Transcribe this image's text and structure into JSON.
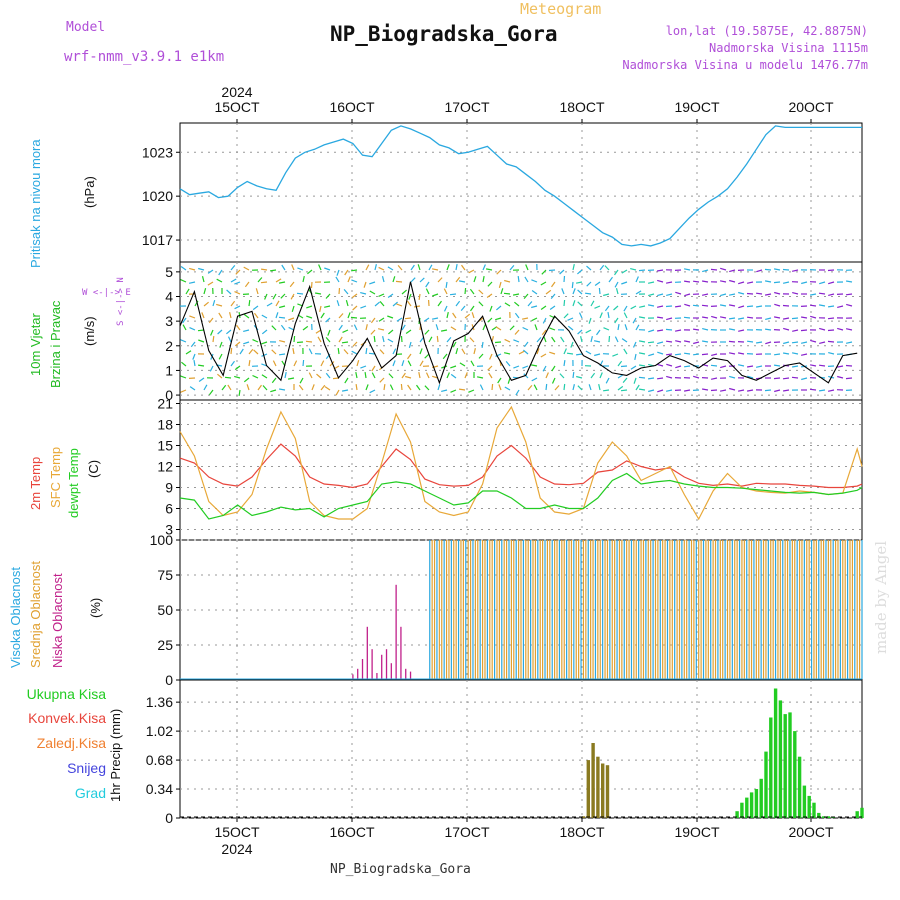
{
  "header": {
    "model_label": "Model",
    "model_name": "wrf-nmm_v3.9.1 e1km",
    "meteogram": "Meteogram",
    "title": "NP_Biogradska_Gora",
    "lonlat": "lon,lat (19.5875E, 42.8875N)",
    "altitude": "Nadmorska Visina 1115m",
    "model_altitude": "Nadmorska Visina u modelu 1476.77m",
    "footer_title": "NP_Biogradska_Gora",
    "made_by": "made by Angel"
  },
  "colors": {
    "pressure": "#2aa8e0",
    "wind_label": "#22bb22",
    "temp2m": "#e8453c",
    "sfc": "#e8a838",
    "dewpt": "#22cc22",
    "cloud_high": "#2aa8e0",
    "cloud_mid": "#e0a030",
    "cloud_low": "#c0208a",
    "precip": "#22cc22",
    "precip_conv": "#e8453c",
    "precip_frz": "#f08030",
    "snow": "#4444dd",
    "hail": "#22ccdd"
  },
  "panel_labels": {
    "pressure": [
      "Pritisak na nivou mora",
      "(hPa)"
    ],
    "wind": [
      "10m Vjetar",
      "Brzina i Pravac",
      "(m/s)"
    ],
    "wind_compass": [
      "W  <-|->  E",
      "S <-|-> N"
    ],
    "temp": [
      "2m Temp",
      "SFC Temp",
      "dewpt Temp",
      "(C)"
    ],
    "cloud": [
      "Visoka Oblacnost",
      "Srednja Oblacnost",
      "Niska  Oblacnost",
      "(%)"
    ],
    "precip_unit": "1hr Precip (mm)",
    "precip_legend": [
      "Ukupna  Kisa",
      "Konvek.Kisa",
      "Zaledj.Kisa",
      "Snijeg",
      "Grad"
    ]
  },
  "chart_data": [
    {
      "type": "line",
      "name": "pressure",
      "x_ticks": [
        "15OCT",
        "16OCT",
        "17OCT",
        "18OCT",
        "19OCT",
        "20OCT"
      ],
      "x_top_year": "2024",
      "x_bottom_year": "2024",
      "xlim": [
        0,
        142
      ],
      "ylim": [
        1015.5,
        1025.0
      ],
      "y_ticks": [
        1017,
        1020,
        1023
      ],
      "x": [
        0,
        2,
        4,
        6,
        8,
        10,
        12,
        14,
        16,
        18,
        20,
        22,
        24,
        26,
        28,
        30,
        32,
        34,
        36,
        38,
        40,
        42,
        44,
        46,
        48,
        50,
        52,
        54,
        56,
        58,
        60,
        62,
        64,
        66,
        68,
        70,
        72,
        74,
        76,
        78,
        80,
        82,
        84,
        86,
        88,
        90,
        92,
        94,
        96,
        98,
        100,
        102,
        104,
        106,
        108,
        110,
        112,
        114,
        116,
        118,
        120,
        122,
        124,
        126,
        128,
        130,
        132,
        134,
        136,
        138,
        140,
        142
      ],
      "values": [
        1020.5,
        1020.1,
        1020.2,
        1020.3,
        1019.9,
        1020.0,
        1020.6,
        1021.0,
        1020.7,
        1020.5,
        1020.4,
        1021.6,
        1022.6,
        1023.0,
        1023.2,
        1023.5,
        1023.7,
        1023.9,
        1023.6,
        1022.8,
        1022.7,
        1023.6,
        1024.5,
        1024.8,
        1024.6,
        1024.3,
        1024.0,
        1023.5,
        1023.3,
        1022.9,
        1023.0,
        1023.2,
        1023.4,
        1022.8,
        1022.2,
        1022.0,
        1021.5,
        1021.0,
        1020.4,
        1020.0,
        1019.5,
        1019.0,
        1018.5,
        1018.0,
        1017.5,
        1017.2,
        1016.7,
        1016.6,
        1016.7,
        1016.6,
        1016.8,
        1017.1,
        1017.8,
        1018.5,
        1019.1,
        1019.6,
        1020.0,
        1020.5,
        1021.3,
        1022.2,
        1023.2,
        1024.2,
        1024.8,
        1024.7,
        1024.7,
        1024.7,
        1024.7,
        1024.7,
        1024.7,
        1024.7,
        1024.7,
        1024.7
      ],
      "series": [
        {
          "name": "Pritisak na nivou mora",
          "color": "#2aa8e0"
        }
      ]
    },
    {
      "type": "line",
      "name": "wind",
      "x_ticks": [
        "15OCT",
        "16OCT",
        "17OCT",
        "18OCT",
        "19OCT",
        "20OCT"
      ],
      "xlim": [
        0,
        142
      ],
      "ylim": [
        -0.2,
        5.4
      ],
      "y_ticks": [
        0,
        1,
        2,
        3,
        4,
        5
      ],
      "x": [
        0,
        3,
        6,
        9,
        12,
        15,
        18,
        21,
        24,
        27,
        30,
        33,
        36,
        39,
        42,
        45,
        48,
        51,
        54,
        57,
        60,
        63,
        66,
        69,
        72,
        75,
        78,
        81,
        84,
        87,
        90,
        93,
        96,
        99,
        102,
        105,
        108,
        111,
        114,
        117,
        120,
        123,
        126,
        129,
        132,
        135,
        138,
        141
      ],
      "values": [
        2.8,
        4.2,
        1.8,
        0.8,
        3.2,
        3.4,
        1.2,
        0.6,
        2.9,
        4.4,
        2.1,
        0.7,
        1.4,
        2.3,
        1.1,
        1.6,
        4.6,
        2.1,
        0.5,
        2.2,
        2.5,
        3.2,
        1.6,
        0.6,
        0.8,
        2.1,
        3.2,
        2.6,
        1.6,
        1.3,
        0.9,
        0.8,
        1.1,
        1.2,
        1.6,
        1.4,
        1.1,
        1.5,
        1.4,
        0.8,
        0.6,
        0.9,
        1.2,
        1.3,
        0.9,
        0.5,
        1.6,
        1.7
      ],
      "series": [
        {
          "name": "10m Vjetar",
          "color": "#000000"
        }
      ]
    },
    {
      "type": "line",
      "name": "temperature",
      "x_ticks": [
        "15OCT",
        "16OCT",
        "17OCT",
        "18OCT",
        "19OCT",
        "20OCT"
      ],
      "xlim": [
        0,
        142
      ],
      "ylim": [
        1.5,
        21.5
      ],
      "y_ticks": [
        3,
        6,
        9,
        12,
        15,
        18,
        21
      ],
      "x": [
        0,
        3,
        6,
        9,
        12,
        15,
        18,
        21,
        24,
        27,
        30,
        33,
        36,
        39,
        42,
        45,
        48,
        51,
        54,
        57,
        60,
        63,
        66,
        69,
        72,
        75,
        78,
        81,
        84,
        87,
        90,
        93,
        96,
        99,
        102,
        105,
        108,
        111,
        114,
        117,
        120,
        123,
        126,
        129,
        132,
        135,
        138,
        141,
        142
      ],
      "series": [
        {
          "name": "2m Temp",
          "color": "#e8453c",
          "values": [
            13.2,
            12.5,
            10.5,
            9.5,
            9.2,
            10.5,
            13.0,
            15.2,
            13.5,
            10.5,
            9.5,
            9.3,
            9.0,
            9.5,
            12.0,
            14.5,
            13.0,
            10.2,
            9.4,
            9.2,
            9.3,
            10.5,
            13.5,
            15.0,
            13.2,
            10.5,
            9.5,
            9.4,
            9.6,
            11.2,
            11.5,
            12.8,
            12.0,
            11.5,
            11.8,
            10.5,
            9.6,
            9.3,
            9.5,
            9.2,
            9.6,
            9.5,
            9.5,
            9.3,
            9.2,
            9.0,
            9.0,
            9.2,
            9.5
          ]
        },
        {
          "name": "SFC Temp",
          "color": "#e8a838",
          "values": [
            17.0,
            13.5,
            7.0,
            5.0,
            5.5,
            8.0,
            14.5,
            19.8,
            16.0,
            7.0,
            5.0,
            4.5,
            4.5,
            6.0,
            12.5,
            19.5,
            15.5,
            7.0,
            5.5,
            5.0,
            5.5,
            9.5,
            17.5,
            20.5,
            15.5,
            7.5,
            5.5,
            5.2,
            6.0,
            12.5,
            15.5,
            13.5,
            10.0,
            11.0,
            12.0,
            8.0,
            4.5,
            8.5,
            11.0,
            9.0,
            8.5,
            8.3,
            8.2,
            8.5,
            8.3,
            8.0,
            8.2,
            14.5,
            12.0
          ]
        },
        {
          "name": "dewpt Temp",
          "color": "#22cc22",
          "values": [
            7.5,
            7.2,
            4.5,
            5.0,
            6.5,
            5.0,
            5.5,
            6.2,
            5.8,
            6.0,
            4.8,
            6.0,
            6.5,
            7.0,
            9.5,
            9.8,
            9.5,
            8.5,
            7.5,
            6.5,
            6.8,
            8.5,
            8.5,
            7.5,
            6.0,
            6.0,
            6.5,
            6.0,
            6.0,
            7.5,
            10.0,
            11.0,
            9.5,
            9.8,
            10.0,
            9.5,
            9.2,
            9.0,
            9.0,
            8.9,
            8.7,
            8.5,
            8.3,
            8.2,
            8.3,
            8.0,
            8.2,
            8.6,
            9.0
          ]
        }
      ]
    },
    {
      "type": "bar",
      "name": "cloud_cover",
      "x_ticks": [
        "15OCT",
        "16OCT",
        "17OCT",
        "18OCT",
        "19OCT",
        "20OCT"
      ],
      "xlim": [
        0,
        142
      ],
      "ylim": [
        0,
        100
      ],
      "y_ticks": [
        0,
        25,
        50,
        75,
        100
      ],
      "x": [
        36,
        37,
        38,
        39,
        40,
        41,
        42,
        43,
        44,
        45,
        46,
        47,
        48
      ],
      "series": [
        {
          "name": "Niska Oblacnost",
          "color": "#c0208a",
          "values": [
            4,
            8,
            15,
            38,
            22,
            5,
            18,
            22,
            12,
            68,
            38,
            8,
            6
          ]
        }
      ],
      "overcast_from_x": 52,
      "overcast_value": 100
    },
    {
      "type": "bar",
      "name": "precipitation",
      "x_ticks": [
        "15OCT",
        "16OCT",
        "17OCT",
        "18OCT",
        "19OCT",
        "20OCT"
      ],
      "x_bottom_year": "2024",
      "xlim": [
        0,
        142
      ],
      "ylim": [
        0,
        1.62
      ],
      "y_ticks": [
        0,
        0.34,
        0.68,
        1.02,
        1.36
      ],
      "x": [
        84,
        85,
        86,
        87,
        88,
        89,
        116,
        117,
        118,
        119,
        120,
        121,
        122,
        123,
        124,
        125,
        126,
        127,
        128,
        129,
        130,
        131,
        132,
        133,
        134,
        135,
        136,
        141,
        142
      ],
      "series": [
        {
          "name": "Ukupna Kisa",
          "color": "#22cc22",
          "values": [
            0.02,
            0.68,
            0.88,
            0.72,
            0.64,
            0.62,
            0.08,
            0.18,
            0.24,
            0.3,
            0.34,
            0.46,
            0.78,
            1.18,
            1.52,
            1.38,
            1.22,
            1.24,
            1.02,
            0.72,
            0.38,
            0.26,
            0.18,
            0.06,
            0.02,
            0.02,
            0.01,
            0.08,
            0.12
          ]
        }
      ]
    }
  ]
}
